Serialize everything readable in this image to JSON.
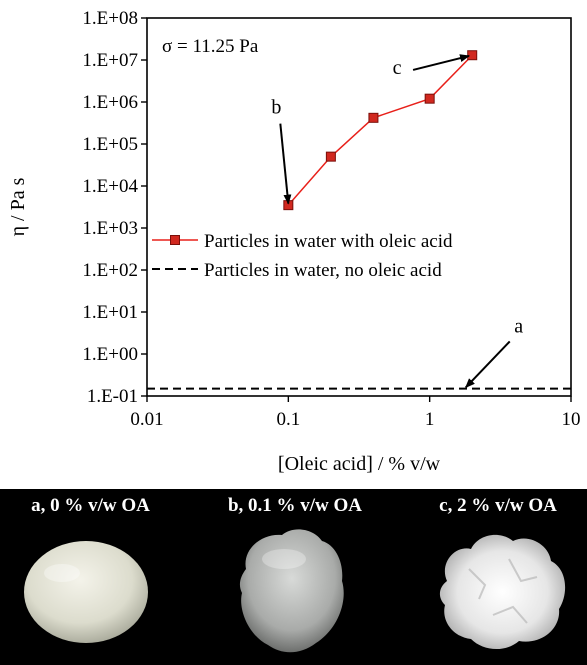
{
  "chart_data": {
    "type": "line",
    "xscale": "log",
    "yscale": "log",
    "xlabel": "[Oleic acid]  / % v/w",
    "ylabel": "η  / Pa s",
    "xlim": [
      0.01,
      10
    ],
    "ylim": [
      0.1,
      100000000
    ],
    "x_ticks": [
      "0.01",
      "0.1",
      "1",
      "10"
    ],
    "y_ticks": [
      "1.E-01",
      "1.E+00",
      "1.E+01",
      "1.E+02",
      "1.E+03",
      "1.E+04",
      "1.E+05",
      "1.E+06",
      "1.E+07",
      "1.E+08"
    ],
    "grid": false,
    "stress_label": "σ = 11.25 Pa",
    "legend_position": "middle-left",
    "series": [
      {
        "name": "Particles in water with oleic acid",
        "style": "solid-line-square-markers",
        "color": "#e8201a",
        "x": [
          0.1,
          0.2,
          0.4,
          1.0,
          2.0
        ],
        "y": [
          3500,
          50000,
          420000,
          1200000,
          13000000
        ]
      },
      {
        "name": "Particles in water, no oleic acid",
        "style": "dashed",
        "color": "#000000",
        "x": [
          0.01,
          10
        ],
        "y": [
          0.15,
          0.15
        ]
      }
    ],
    "annotations": [
      {
        "label": "a",
        "target_x": 1.8,
        "target_y": 0.16
      },
      {
        "label": "b",
        "target_x": 0.1,
        "target_y": 3800
      },
      {
        "label": "c",
        "target_x": 1.9,
        "target_y": 12500000
      }
    ]
  },
  "photos": [
    {
      "label": "a, 0 % v/w OA"
    },
    {
      "label": "b, 0.1 % v/w OA"
    },
    {
      "label": "c, 2 % v/w OA"
    }
  ]
}
